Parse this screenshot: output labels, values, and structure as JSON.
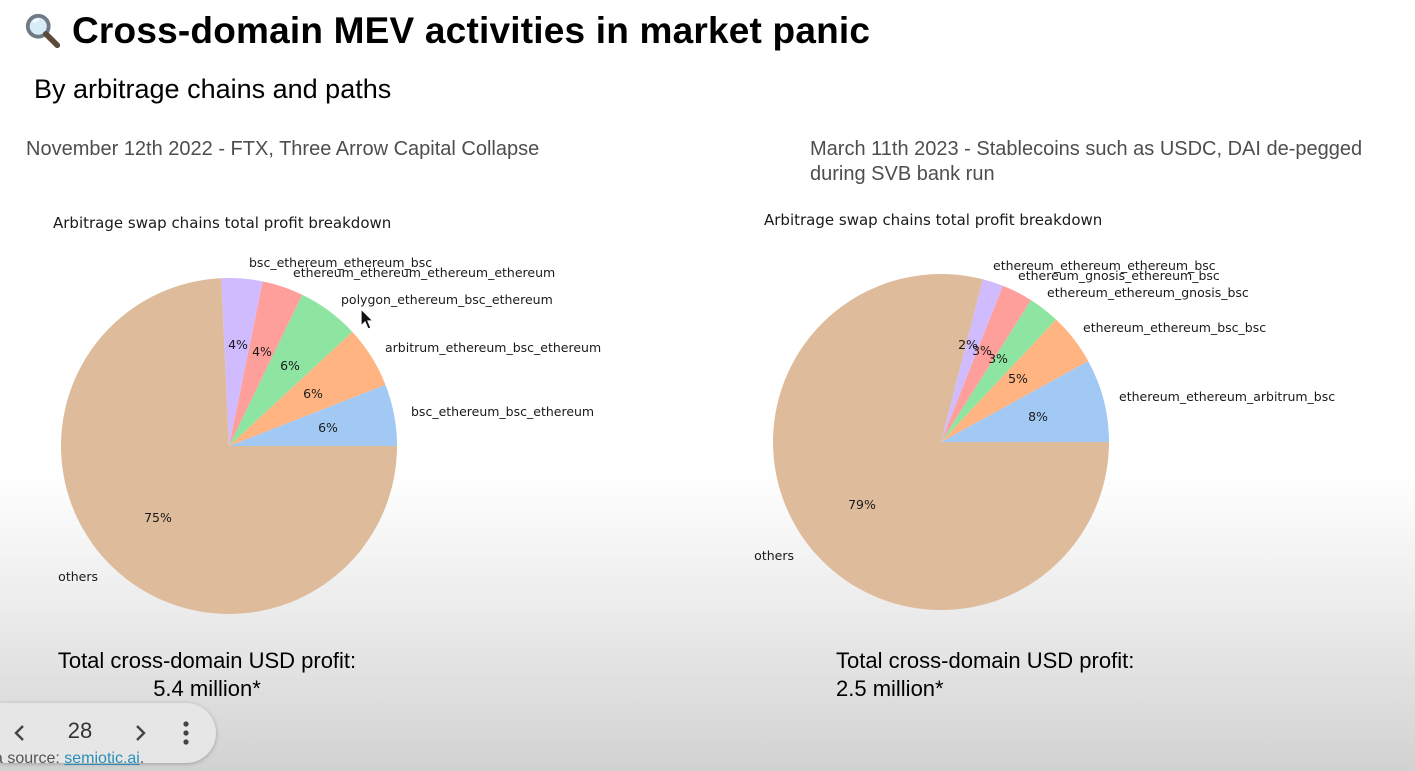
{
  "slide": {
    "title": "Cross-domain MEV activities in market panic",
    "title_icon": "magnifier-icon",
    "subtitle": "By arbitrage chains and paths"
  },
  "left": {
    "event": "November 12th 2022 - FTX, Three Arrow Capital Collapse",
    "profit_label": "Total cross-domain USD profit:",
    "profit_value": "5.4 million*"
  },
  "right": {
    "event": "March 11th 2023 - Stablecoins such as USDC, DAI de-pegged during SVB bank run",
    "profit_label": "Total cross-domain USD profit:",
    "profit_value": "2.5 million*"
  },
  "chart_data": [
    {
      "type": "pie",
      "title": "Arbitrage swap chains total profit breakdown",
      "start_angle_deg": 0,
      "direction": "counterclockwise",
      "slices": [
        {
          "label": "bsc_ethereum_bsc_ethereum",
          "value": 6,
          "pct_label": "6%",
          "color": "#a1c9f4"
        },
        {
          "label": "arbitrum_ethereum_bsc_ethereum",
          "value": 6,
          "pct_label": "6%",
          "color": "#ffb482"
        },
        {
          "label": "polygon_ethereum_bsc_ethereum",
          "value": 6,
          "pct_label": "6%",
          "color": "#8de5a1"
        },
        {
          "label": "ethereum_ethereum_ethereum_ethereum",
          "value": 4,
          "pct_label": "4%",
          "color": "#ff9f9b"
        },
        {
          "label": "bsc_ethereum_ethereum_bsc",
          "value": 4,
          "pct_label": "4%",
          "color": "#d0bbff"
        },
        {
          "label": "others",
          "value": 75,
          "pct_label": "75%",
          "color": "#debb9b"
        }
      ]
    },
    {
      "type": "pie",
      "title": "Arbitrage swap chains total profit breakdown",
      "start_angle_deg": 0,
      "direction": "counterclockwise",
      "slices": [
        {
          "label": "ethereum_ethereum_arbitrum_bsc",
          "value": 8,
          "pct_label": "8%",
          "color": "#a1c9f4"
        },
        {
          "label": "ethereum_ethereum_bsc_bsc",
          "value": 5,
          "pct_label": "5%",
          "color": "#ffb482"
        },
        {
          "label": "ethereum_ethereum_gnosis_bsc",
          "value": 3,
          "pct_label": "3%",
          "color": "#8de5a1"
        },
        {
          "label": "ethereum_gnosis_ethereum_bsc",
          "value": 3,
          "pct_label": "3%",
          "color": "#ff9f9b"
        },
        {
          "label": "ethereum_ethereum_ethereum_bsc",
          "value": 2,
          "pct_label": "2%",
          "color": "#d0bbff"
        },
        {
          "label": "others",
          "value": 79,
          "pct_label": "79%",
          "color": "#debb9b"
        }
      ]
    }
  ],
  "nav": {
    "page": "28",
    "prev_icon": "chevron-left-icon",
    "next_icon": "chevron-right-icon",
    "more_icon": "more-vertical-icon"
  },
  "footer": {
    "source_prefix": "a source: ",
    "source_link": "semiotic.ai",
    "source_suffix": "."
  }
}
